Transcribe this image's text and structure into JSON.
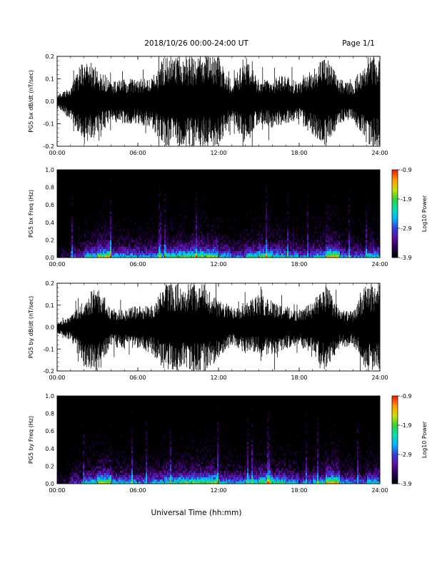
{
  "header": {
    "title": "2018/10/26  00:00-24:00 UT",
    "page": "Page 1/1"
  },
  "footer": {
    "xlabel": "Universal Time (hh:mm)"
  },
  "colors": {
    "waveform": "#000000",
    "background": "#ffffff",
    "colormap": [
      "#000000",
      "#2a0050",
      "#5a10a0",
      "#3a3ad8",
      "#00b4ff",
      "#00e0b0",
      "#30d040",
      "#c8e000",
      "#ffa000",
      "#ff2000"
    ]
  },
  "chart_data": [
    {
      "type": "line",
      "ylabel": "PG5 bx dB/dt (nT/sec)",
      "xlim": [
        "00:00",
        "24:00"
      ],
      "ylim": [
        -0.2,
        0.2
      ],
      "xticks": [
        "00:00",
        "06:00",
        "12:00",
        "18:00",
        "24:00"
      ],
      "yticks": [
        "-0.2",
        "-0.1",
        "0.0",
        "0.1",
        "0.2"
      ],
      "series": [
        {
          "x": [
            0,
            1,
            2,
            3,
            4,
            5,
            6,
            7,
            8,
            9,
            10,
            11,
            12,
            13,
            14,
            15,
            16,
            17,
            18,
            19,
            20,
            21,
            22,
            23,
            24
          ],
          "y_max": [
            0.03,
            0.06,
            0.2,
            0.15,
            0.09,
            0.1,
            0.1,
            0.1,
            0.2,
            0.2,
            0.2,
            0.2,
            0.2,
            0.08,
            0.2,
            0.1,
            0.1,
            0.12,
            0.08,
            0.15,
            0.2,
            0.1,
            0.08,
            0.2,
            0.2
          ],
          "y_min": [
            -0.03,
            -0.08,
            -0.2,
            -0.15,
            -0.09,
            -0.1,
            -0.1,
            -0.12,
            -0.2,
            -0.2,
            -0.2,
            -0.2,
            -0.2,
            -0.08,
            -0.2,
            -0.1,
            -0.12,
            -0.1,
            -0.08,
            -0.16,
            -0.2,
            -0.1,
            -0.08,
            -0.2,
            -0.2
          ]
        }
      ]
    },
    {
      "type": "heatmap",
      "ylabel": "PG5 bx Freq (Hz)",
      "xlim": [
        "00:00",
        "24:00"
      ],
      "ylim": [
        0.0,
        1.0
      ],
      "xticks": [
        "00:00",
        "06:00",
        "12:00",
        "18:00",
        "24:00"
      ],
      "yticks": [
        "0.0",
        "0.2",
        "0.4",
        "0.6",
        "0.8",
        "1.0"
      ],
      "colorbar": {
        "label": "Log10 Power",
        "range": [
          -3.9,
          -0.9
        ],
        "ticks": [
          "-0.9",
          "-1.9",
          "-2.9",
          "-3.9"
        ]
      },
      "activity_by_hour": [
        0.2,
        0.4,
        0.6,
        0.8,
        0.55,
        0.55,
        0.5,
        0.55,
        0.65,
        0.7,
        0.75,
        0.75,
        0.55,
        0.45,
        0.6,
        0.7,
        0.6,
        0.55,
        0.45,
        0.6,
        0.85,
        0.5,
        0.45,
        0.6
      ]
    },
    {
      "type": "line",
      "ylabel": "PG5 by dB/dt (nT/sec)",
      "xlim": [
        "00:00",
        "24:00"
      ],
      "ylim": [
        -0.2,
        0.2
      ],
      "xticks": [
        "00:00",
        "06:00",
        "12:00",
        "18:00",
        "24:00"
      ],
      "yticks": [
        "-0.2",
        "-0.1",
        "0.0",
        "0.1",
        "0.2"
      ],
      "series": [
        {
          "x": [
            0,
            1,
            2,
            3,
            4,
            5,
            6,
            7,
            8,
            9,
            10,
            11,
            12,
            13,
            14,
            15,
            16,
            17,
            18,
            19,
            20,
            21,
            22,
            23,
            24
          ],
          "y_max": [
            0.02,
            0.05,
            0.12,
            0.2,
            0.08,
            0.08,
            0.1,
            0.1,
            0.2,
            0.2,
            0.2,
            0.2,
            0.12,
            0.1,
            0.12,
            0.15,
            0.12,
            0.1,
            0.07,
            0.12,
            0.2,
            0.08,
            0.07,
            0.2,
            0.2
          ],
          "y_min": [
            -0.03,
            -0.06,
            -0.18,
            -0.2,
            -0.09,
            -0.1,
            -0.1,
            -0.12,
            -0.2,
            -0.2,
            -0.2,
            -0.2,
            -0.15,
            -0.08,
            -0.12,
            -0.12,
            -0.14,
            -0.1,
            -0.08,
            -0.14,
            -0.2,
            -0.1,
            -0.08,
            -0.2,
            -0.2
          ]
        }
      ]
    },
    {
      "type": "heatmap",
      "ylabel": "PG5 by Freq (Hz)",
      "xlim": [
        "00:00",
        "24:00"
      ],
      "ylim": [
        0.0,
        1.0
      ],
      "xticks": [
        "00:00",
        "06:00",
        "12:00",
        "18:00",
        "24:00"
      ],
      "yticks": [
        "0.0",
        "0.2",
        "0.4",
        "0.6",
        "0.8",
        "1.0"
      ],
      "colorbar": {
        "label": "Log10 Power",
        "range": [
          -3.9,
          -0.9
        ],
        "ticks": [
          "-0.9",
          "-1.9",
          "-2.9",
          "-3.9"
        ]
      },
      "activity_by_hour": [
        0.2,
        0.4,
        0.6,
        0.8,
        0.55,
        0.55,
        0.5,
        0.55,
        0.65,
        0.7,
        0.75,
        0.75,
        0.55,
        0.5,
        0.6,
        0.75,
        0.65,
        0.55,
        0.45,
        0.6,
        0.85,
        0.5,
        0.45,
        0.6
      ]
    }
  ]
}
